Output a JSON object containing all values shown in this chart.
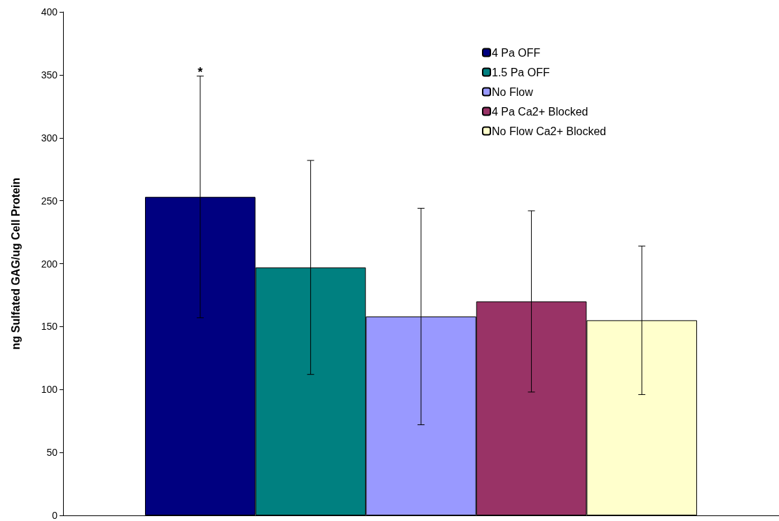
{
  "chart_data": {
    "type": "bar",
    "ylabel": "ng Sulfated GAG/ug Cell Protein",
    "categories": [
      null
    ],
    "series": [
      {
        "name": "4 Pa OFF",
        "color": "#000080",
        "values": [
          253
        ],
        "errors": [
          96
        ]
      },
      {
        "name": "1.5 Pa OFF",
        "color": "#008080",
        "values": [
          197
        ],
        "errors": [
          85
        ]
      },
      {
        "name": "No Flow",
        "color": "#9999ff",
        "values": [
          158
        ],
        "errors": [
          86
        ]
      },
      {
        "name": "4 Pa Ca2+ Blocked",
        "color": "#993366",
        "values": [
          170
        ],
        "errors": [
          72
        ]
      },
      {
        "name": "No Flow Ca2+ Blocked",
        "color": "#ffffcc",
        "values": [
          155
        ],
        "errors": [
          59
        ]
      }
    ],
    "ylim": [
      0,
      400
    ],
    "yticks": [
      0,
      50,
      100,
      150,
      200,
      250,
      300,
      350,
      400
    ],
    "grid": false,
    "legend": "top right",
    "tick_labels": "y",
    "annotations": [
      {
        "text": "*",
        "y": 352
      }
    ]
  }
}
